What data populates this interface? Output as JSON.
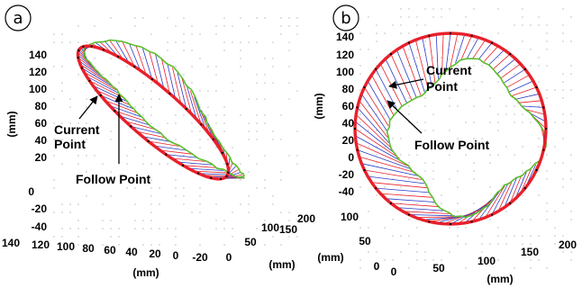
{
  "figure": {
    "panels": [
      {
        "label": "a",
        "annotations": [
          "Current",
          "Point",
          "Follow Point"
        ],
        "axes": {
          "z": {
            "label": "(mm)",
            "ticks": [
              "140",
              "120",
              "100",
              "80",
              "60",
              "40",
              "20",
              "0",
              "-20",
              "-40"
            ]
          },
          "x": {
            "label": "(mm)",
            "ticks": [
              "140",
              "120",
              "100",
              "80",
              "60",
              "40",
              "20",
              "0",
              "-20"
            ]
          },
          "y": {
            "label": "(mm)",
            "ticks": [
              "0",
              "50",
              "100",
              "150",
              "200"
            ]
          }
        }
      },
      {
        "label": "b",
        "annotations": [
          "Current",
          "Point",
          "Follow Point"
        ],
        "axes": {
          "z": {
            "label": "(mm)",
            "ticks": [
              "140",
              "120",
              "100",
              "80",
              "60",
              "40",
              "20",
              "0",
              "-20",
              "-40"
            ]
          },
          "x": {
            "label": "(mm)",
            "ticks": [
              "0",
              "50",
              "100",
              "150",
              "200"
            ]
          },
          "y": {
            "label": "(mm)",
            "ticks": [
              "0",
              "50",
              "100"
            ]
          }
        }
      }
    ],
    "colors": {
      "current_path": "#e8202a",
      "follow_path": "#5cbf2a",
      "current_to_follow_line": "#e8202a",
      "follow_to_current_line": "#2a3cc8",
      "samples": "#000000"
    }
  },
  "chart_data": [
    {
      "type": "line3d",
      "panel": "a",
      "series": [
        {
          "name": "Current Point",
          "shape": "tilted circular path"
        },
        {
          "name": "Follow Point",
          "shape": "lagging path inside the circle"
        }
      ],
      "zlim": [
        -40,
        140
      ],
      "xlim": [
        -20,
        140
      ],
      "ylim": [
        0,
        200
      ]
    },
    {
      "type": "line3d",
      "panel": "b",
      "series": [
        {
          "name": "Current Point",
          "shape": "circular path viewed face-on"
        },
        {
          "name": "Follow Point",
          "shape": "lagging path inside the circle"
        }
      ],
      "zlim": [
        -40,
        140
      ],
      "xlim": [
        0,
        200
      ],
      "ylim": [
        0,
        100
      ]
    }
  ]
}
